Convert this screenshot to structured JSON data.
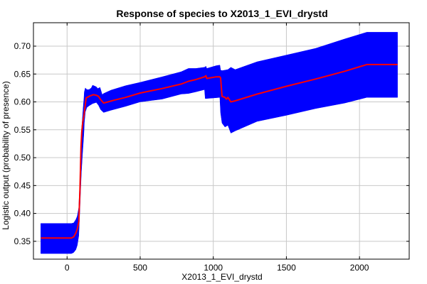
{
  "chart_data": {
    "type": "area",
    "title": "Response of species to X2013_1_EVI_drystd",
    "xlabel": "X2013_1_EVI_drystd",
    "ylabel": "Logistic output (probability of presence)",
    "xlim": [
      -230,
      2340
    ],
    "ylim": [
      0.318,
      0.742
    ],
    "x_ticks": [
      0,
      500,
      1000,
      1500,
      2000
    ],
    "y_ticks": [
      0.35,
      0.4,
      0.45,
      0.5,
      0.55,
      0.6,
      0.65,
      0.7
    ],
    "x_tick_labels": [
      "0",
      "500",
      "1000",
      "1500",
      "2000"
    ],
    "y_tick_labels": [
      "0.35",
      "0.40",
      "0.45",
      "0.50",
      "0.55",
      "0.60",
      "0.65",
      "0.70"
    ],
    "grid": true,
    "legend": "none",
    "colors": {
      "band": "#0000ff",
      "mean": "#ff0000",
      "grid": "#c8c8c8",
      "axes": "#000000"
    },
    "series": [
      {
        "name": "",
        "role": "mean",
        "x": [
          -180,
          30,
          45,
          60,
          70,
          80,
          88,
          95,
          100,
          108,
          115,
          130,
          150,
          180,
          200,
          215,
          230,
          250,
          280,
          320,
          400,
          500,
          650,
          780,
          830,
          880,
          940,
          950,
          955,
          1020,
          1045,
          1050,
          1060,
          1080,
          1090,
          1100,
          1120,
          1150,
          1300,
          1500,
          1700,
          1900,
          2050,
          2150,
          2260
        ],
        "y": [
          0.356,
          0.356,
          0.358,
          0.365,
          0.372,
          0.385,
          0.44,
          0.52,
          0.545,
          0.565,
          0.575,
          0.607,
          0.61,
          0.613,
          0.612,
          0.61,
          0.604,
          0.598,
          0.6,
          0.603,
          0.608,
          0.616,
          0.624,
          0.632,
          0.637,
          0.64,
          0.645,
          0.647,
          0.642,
          0.645,
          0.645,
          0.643,
          0.61,
          0.608,
          0.605,
          0.608,
          0.6,
          0.602,
          0.614,
          0.628,
          0.641,
          0.655,
          0.667,
          0.667,
          0.667
        ]
      },
      {
        "name": "",
        "role": "upper",
        "x": [
          -180,
          30,
          45,
          60,
          70,
          80,
          88,
          92,
          98,
          105,
          110,
          115,
          118,
          125,
          135,
          150,
          165,
          175,
          200,
          210,
          225,
          240,
          250,
          300,
          400,
          500,
          650,
          780,
          830,
          880,
          940,
          950,
          955,
          1020,
          1045,
          1050,
          1060,
          1080,
          1100,
          1120,
          1150,
          1300,
          1500,
          1700,
          1900,
          2050,
          2150,
          2260
        ],
        "y": [
          0.382,
          0.382,
          0.383,
          0.389,
          0.395,
          0.41,
          0.46,
          0.505,
          0.547,
          0.57,
          0.59,
          0.605,
          0.618,
          0.625,
          0.622,
          0.622,
          0.625,
          0.63,
          0.627,
          0.624,
          0.626,
          0.613,
          0.615,
          0.621,
          0.629,
          0.635,
          0.645,
          0.654,
          0.66,
          0.66,
          0.662,
          0.664,
          0.66,
          0.665,
          0.666,
          0.657,
          0.656,
          0.657,
          0.658,
          0.662,
          0.658,
          0.672,
          0.684,
          0.696,
          0.713,
          0.725,
          0.725,
          0.725
        ]
      },
      {
        "name": "",
        "role": "lower",
        "x": [
          -180,
          30,
          45,
          60,
          70,
          80,
          88,
          92,
          98,
          105,
          110,
          115,
          118,
          125,
          135,
          150,
          175,
          200,
          215,
          230,
          250,
          300,
          400,
          500,
          650,
          780,
          830,
          880,
          940,
          945,
          950,
          1000,
          1045,
          1050,
          1060,
          1080,
          1100,
          1120,
          1150,
          1300,
          1500,
          1700,
          1900,
          2050,
          2150,
          2260
        ],
        "y": [
          0.328,
          0.328,
          0.33,
          0.335,
          0.343,
          0.36,
          0.41,
          0.44,
          0.475,
          0.505,
          0.525,
          0.545,
          0.563,
          0.582,
          0.59,
          0.593,
          0.597,
          0.599,
          0.594,
          0.586,
          0.581,
          0.585,
          0.592,
          0.6,
          0.605,
          0.614,
          0.615,
          0.618,
          0.622,
          0.606,
          0.606,
          0.607,
          0.608,
          0.58,
          0.562,
          0.555,
          0.558,
          0.544,
          0.548,
          0.565,
          0.576,
          0.588,
          0.598,
          0.608,
          0.608,
          0.608
        ]
      }
    ]
  }
}
